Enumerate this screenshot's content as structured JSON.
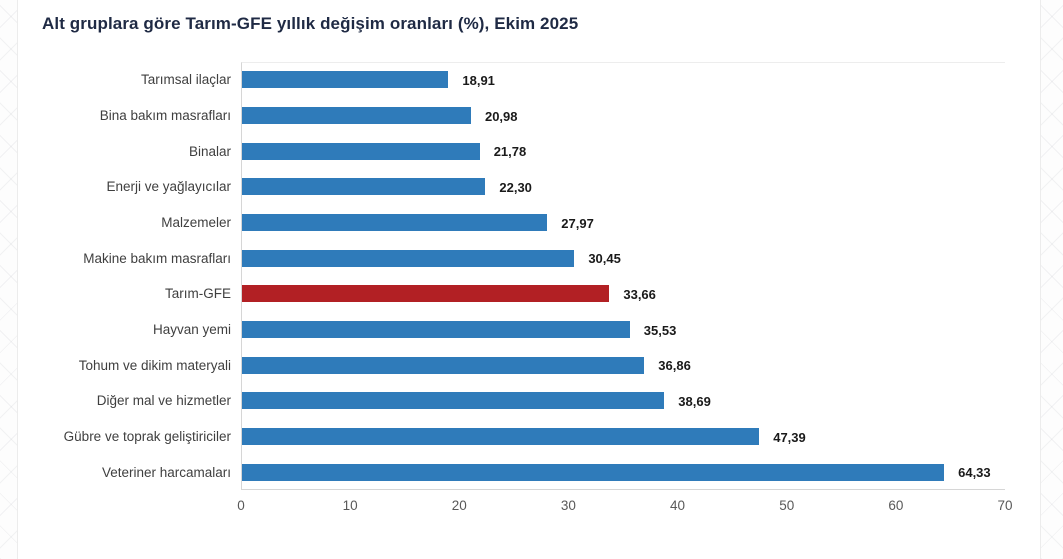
{
  "title": "Alt gruplara göre Tarım-GFE yıllık değişim oranları (%), Ekim 2025",
  "chart_data": {
    "type": "bar",
    "orientation": "horizontal",
    "title": "Alt gruplara göre Tarım-GFE yıllık değişim oranları (%), Ekim 2025",
    "categories": [
      "Tarımsal ilaçlar",
      "Bina bakım masrafları",
      "Binalar",
      "Enerji ve yağlayıcılar",
      "Malzemeler",
      "Makine bakım masrafları",
      "Tarım-GFE",
      "Hayvan yemi",
      "Tohum ve dikim materyali",
      "Diğer mal ve hizmetler",
      "Gübre ve toprak geliştiriciler",
      "Veteriner harcamaları"
    ],
    "values": [
      18.91,
      20.98,
      21.78,
      22.3,
      27.97,
      30.45,
      33.66,
      35.53,
      36.86,
      38.69,
      47.39,
      64.33
    ],
    "value_labels": [
      "18,91",
      "20,98",
      "21,78",
      "22,30",
      "27,97",
      "30,45",
      "33,66",
      "35,53",
      "36,86",
      "38,69",
      "47,39",
      "64,33"
    ],
    "highlight_index": 6,
    "highlight_category": "Tarım-GFE",
    "xlim": [
      0,
      70
    ],
    "x_ticks": [
      "0",
      "10",
      "20",
      "30",
      "40",
      "50",
      "60",
      "70"
    ],
    "grid": false,
    "legend": false,
    "colors": {
      "bar": "#2F7BBA",
      "highlight": "#B22024",
      "title": "#1F2A44",
      "category_label": "#3F3F3F",
      "value_label": "#1A1A1A",
      "tick_label": "#595959",
      "axis_line": "#D6D6D6"
    }
  }
}
